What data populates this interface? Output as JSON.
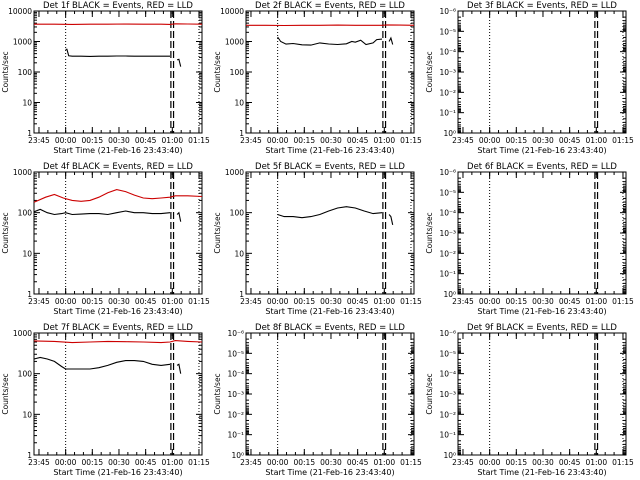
{
  "figure": {
    "xlabel": "Start Time (21-Feb-16 23:43:40)",
    "ylabel": "Counts/sec",
    "x_tick_labels": [
      "23:45",
      "00:00",
      "00:15",
      "00:30",
      "00:45",
      "01:00",
      "01:15"
    ],
    "colors": {
      "events": "#000000",
      "lld": "#cc0000",
      "axes": "#000000",
      "background": "#ffffff"
    }
  },
  "chart_data": [
    {
      "type": "line",
      "scale": "log",
      "title": "Det 1f BLACK = Events, RED = LLD",
      "ylim": [
        1,
        10000
      ],
      "y_ticks": [
        1,
        10,
        100,
        1000,
        10000
      ],
      "y_tick_labels": [
        "1",
        "10",
        "100",
        "1000",
        "10000"
      ],
      "xlim_minutes": [
        -1.5,
        93
      ],
      "x_tick_minutes": [
        1.3,
        16.3,
        31.3,
        46.3,
        61.3,
        76.3,
        91.3
      ],
      "vlines_dotted": [
        16.3,
        91.3
      ],
      "vlines_dashed": [
        75.5,
        77
      ],
      "series": [
        {
          "name": "LLD",
          "color": "#cc0000",
          "x": [
            -1.5,
            10,
            20,
            30,
            40,
            50,
            60,
            70,
            75,
            78,
            85,
            93
          ],
          "y": [
            3700,
            3700,
            3650,
            3700,
            3700,
            3750,
            3700,
            3700,
            3650,
            3800,
            3750,
            3700
          ]
        },
        {
          "name": "Events",
          "color": "#000000",
          "x": [
            16.3,
            17,
            18,
            20,
            25,
            30,
            35,
            40,
            45,
            50,
            55,
            60,
            65,
            70,
            74,
            75
          ],
          "y": [
            550,
            560,
            340,
            330,
            330,
            325,
            330,
            330,
            335,
            335,
            330,
            330,
            330,
            330,
            330,
            330
          ]
        },
        {
          "name": "Events",
          "color": "#000000",
          "x": [
            79,
            80,
            81
          ],
          "y": [
            250,
            260,
            150
          ]
        }
      ]
    },
    {
      "type": "line",
      "scale": "log",
      "title": "Det 2f BLACK = Events, RED = LLD",
      "ylim": [
        1,
        10000
      ],
      "y_ticks": [
        1,
        10,
        100,
        1000,
        10000
      ],
      "y_tick_labels": [
        "1",
        "10",
        "100",
        "1000",
        "10000"
      ],
      "xlim_minutes": [
        -1.5,
        93
      ],
      "x_tick_minutes": [
        1.3,
        16.3,
        31.3,
        46.3,
        61.3,
        76.3,
        91.3
      ],
      "vlines_dotted": [
        16.3,
        91.3
      ],
      "vlines_dashed": [
        75.5,
        77
      ],
      "series": [
        {
          "name": "LLD",
          "color": "#cc0000",
          "x": [
            -1.5,
            10,
            20,
            30,
            40,
            50,
            60,
            70,
            75,
            78,
            85,
            93
          ],
          "y": [
            3400,
            3400,
            3350,
            3400,
            3400,
            3450,
            3400,
            3400,
            3400,
            3500,
            3450,
            3400
          ]
        },
        {
          "name": "Events",
          "color": "#000000",
          "x": [
            16.3,
            18,
            21,
            25,
            30,
            35,
            40,
            45,
            50,
            55,
            58,
            60,
            63,
            66,
            70,
            72,
            75
          ],
          "y": [
            1400,
            1000,
            820,
            860,
            780,
            760,
            900,
            830,
            800,
            840,
            1000,
            950,
            1100,
            800,
            900,
            1150,
            1200
          ]
        },
        {
          "name": "Events",
          "color": "#000000",
          "x": [
            79,
            80,
            81
          ],
          "y": [
            1000,
            1300,
            800
          ]
        }
      ]
    },
    {
      "type": "line",
      "scale": "log",
      "title": "Det 3f BLACK = Events, RED = LLD",
      "ylim": [
        1,
        1e-06
      ],
      "y_ticks": [
        1,
        0.1,
        0.01,
        0.001,
        0.0001,
        1e-05,
        1e-06
      ],
      "y_tick_labels": [
        "10⁰",
        "10⁻¹",
        "10⁻²",
        "10⁻³",
        "10⁻⁴",
        "10⁻⁵",
        "10⁻⁶"
      ],
      "xlim_minutes": [
        -1.5,
        93
      ],
      "x_tick_minutes": [
        1.3,
        16.3,
        31.3,
        46.3,
        61.3,
        76.3,
        91.3
      ],
      "vlines_dotted": [
        16.3,
        91.3
      ],
      "vlines_dashed": [
        75.5,
        77
      ],
      "series": []
    },
    {
      "type": "line",
      "scale": "log",
      "title": "Det 4f BLACK = Events, RED = LLD",
      "ylim": [
        1,
        1000
      ],
      "y_ticks": [
        1,
        10,
        100,
        1000
      ],
      "y_tick_labels": [
        "1",
        "10",
        "100",
        "1000"
      ],
      "xlim_minutes": [
        -1.5,
        93
      ],
      "x_tick_minutes": [
        1.3,
        16.3,
        31.3,
        46.3,
        61.3,
        76.3,
        91.3
      ],
      "vlines_dotted": [
        16.3,
        91.3
      ],
      "vlines_dashed": [
        75.5,
        77
      ],
      "series": [
        {
          "name": "LLD",
          "color": "#cc0000",
          "x": [
            -1.5,
            5,
            10,
            15,
            20,
            25,
            30,
            35,
            40,
            45,
            50,
            55,
            60,
            65,
            70,
            75,
            78,
            85,
            93
          ],
          "y": [
            180,
            240,
            280,
            230,
            200,
            190,
            200,
            240,
            310,
            370,
            330,
            270,
            230,
            220,
            230,
            240,
            260,
            260,
            250
          ]
        },
        {
          "name": "Events",
          "color": "#000000",
          "x": [
            -1.5,
            2,
            6,
            10,
            14,
            16.3,
            20,
            25,
            30,
            35,
            40,
            45,
            50,
            55,
            60,
            65,
            70,
            75
          ],
          "y": [
            105,
            120,
            100,
            90,
            95,
            100,
            90,
            92,
            95,
            95,
            90,
            100,
            110,
            100,
            100,
            95,
            95,
            100
          ]
        },
        {
          "name": "Events",
          "color": "#000000",
          "x": [
            79,
            80,
            81
          ],
          "y": [
            90,
            100,
            60
          ]
        }
      ]
    },
    {
      "type": "line",
      "scale": "log",
      "title": "Det 5f BLACK = Events, RED = LLD",
      "ylim": [
        1,
        1000
      ],
      "y_ticks": [
        1,
        10,
        100,
        1000
      ],
      "y_tick_labels": [
        "1",
        "10",
        "100",
        "1000"
      ],
      "xlim_minutes": [
        -1.5,
        93
      ],
      "x_tick_minutes": [
        1.3,
        16.3,
        31.3,
        46.3,
        61.3,
        76.3,
        91.3
      ],
      "vlines_dotted": [
        16.3,
        91.3
      ],
      "vlines_dashed": [
        75.5,
        77
      ],
      "series": [
        {
          "name": "Events",
          "color": "#000000",
          "x": [
            16.3,
            20,
            25,
            30,
            35,
            40,
            45,
            50,
            55,
            60,
            65,
            70,
            75
          ],
          "y": [
            90,
            80,
            80,
            75,
            80,
            90,
            110,
            130,
            140,
            130,
            110,
            95,
            100
          ]
        },
        {
          "name": "Events",
          "color": "#000000",
          "x": [
            79,
            80,
            81
          ],
          "y": [
            90,
            80,
            50
          ]
        }
      ]
    },
    {
      "type": "line",
      "scale": "log",
      "title": "Det 6f BLACK = Events, RED = LLD",
      "ylim": [
        1,
        1e-06
      ],
      "y_ticks": [
        1,
        0.1,
        0.01,
        0.001,
        0.0001,
        1e-05,
        1e-06
      ],
      "y_tick_labels": [
        "10⁰",
        "10⁻¹",
        "10⁻²",
        "10⁻³",
        "10⁻⁴",
        "10⁻⁵",
        "10⁻⁶"
      ],
      "xlim_minutes": [
        -1.5,
        93
      ],
      "x_tick_minutes": [
        1.3,
        16.3,
        31.3,
        46.3,
        61.3,
        76.3,
        91.3
      ],
      "vlines_dotted": [
        16.3,
        91.3
      ],
      "vlines_dashed": [
        75.5,
        77
      ],
      "series": []
    },
    {
      "type": "line",
      "scale": "log",
      "title": "Det 7f BLACK = Events, RED = LLD",
      "ylim": [
        1,
        1000
      ],
      "y_ticks": [
        1,
        10,
        100,
        1000
      ],
      "y_tick_labels": [
        "1",
        "10",
        "100",
        "1000"
      ],
      "xlim_minutes": [
        -1.5,
        93
      ],
      "x_tick_minutes": [
        1.3,
        16.3,
        31.3,
        46.3,
        61.3,
        76.3,
        91.3
      ],
      "vlines_dotted": [
        16.3,
        91.3
      ],
      "vlines_dashed": [
        75.5,
        77
      ],
      "series": [
        {
          "name": "LLD",
          "color": "#cc0000",
          "x": [
            -1.5,
            10,
            20,
            30,
            40,
            50,
            60,
            70,
            75,
            78,
            85,
            93
          ],
          "y": [
            640,
            620,
            580,
            600,
            620,
            610,
            600,
            580,
            600,
            650,
            620,
            600
          ]
        },
        {
          "name": "Events",
          "color": "#000000",
          "x": [
            -1.5,
            2,
            6,
            10,
            14,
            16.3,
            20,
            25,
            30,
            35,
            40,
            45,
            50,
            55,
            60,
            65,
            70,
            75
          ],
          "y": [
            230,
            250,
            230,
            200,
            150,
            130,
            130,
            130,
            130,
            140,
            160,
            190,
            210,
            210,
            200,
            170,
            160,
            170
          ]
        },
        {
          "name": "Events",
          "color": "#000000",
          "x": [
            79,
            80,
            81
          ],
          "y": [
            160,
            170,
            100
          ]
        }
      ]
    },
    {
      "type": "line",
      "scale": "log",
      "title": "Det 8f BLACK = Events, RED = LLD",
      "ylim": [
        1,
        1e-06
      ],
      "y_ticks": [
        1,
        0.1,
        0.01,
        0.001,
        0.0001,
        1e-05,
        1e-06
      ],
      "y_tick_labels": [
        "10⁰",
        "10⁻¹",
        "10⁻²",
        "10⁻³",
        "10⁻⁴",
        "10⁻⁵",
        "10⁻⁶"
      ],
      "xlim_minutes": [
        -1.5,
        93
      ],
      "x_tick_minutes": [
        1.3,
        16.3,
        31.3,
        46.3,
        61.3,
        76.3,
        91.3
      ],
      "vlines_dotted": [
        16.3,
        91.3
      ],
      "vlines_dashed": [
        75.5,
        77
      ],
      "series": []
    },
    {
      "type": "line",
      "scale": "log",
      "title": "Det 9f BLACK = Events, RED = LLD",
      "ylim": [
        1,
        1e-06
      ],
      "y_ticks": [
        1,
        0.1,
        0.01,
        0.001,
        0.0001,
        1e-05,
        1e-06
      ],
      "y_tick_labels": [
        "10⁰",
        "10⁻¹",
        "10⁻²",
        "10⁻³",
        "10⁻⁴",
        "10⁻⁵",
        "10⁻⁶"
      ],
      "xlim_minutes": [
        -1.5,
        93
      ],
      "x_tick_minutes": [
        1.3,
        16.3,
        31.3,
        46.3,
        61.3,
        76.3,
        91.3
      ],
      "vlines_dotted": [
        16.3,
        91.3
      ],
      "vlines_dashed": [
        75.5,
        77
      ],
      "series": []
    }
  ]
}
